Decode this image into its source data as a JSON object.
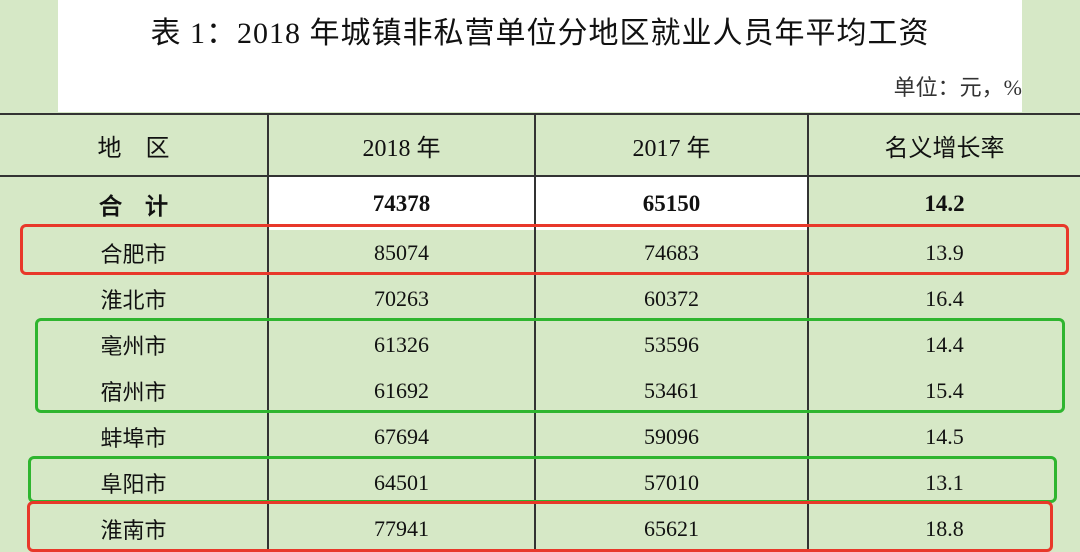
{
  "header": {
    "title": "表 1：2018 年城镇非私营单位分地区就业人员年平均工资",
    "unit": "单位：元，%"
  },
  "table": {
    "columns": [
      "地　区",
      "2018 年",
      "2017 年",
      "名义增长率"
    ],
    "rows": [
      [
        "合　计",
        74378,
        65150,
        14.2
      ],
      [
        "合肥市",
        85074,
        74683,
        13.9
      ],
      [
        "淮北市",
        70263,
        60372,
        16.4
      ],
      [
        "亳州市",
        61326,
        53596,
        14.4
      ],
      [
        "宿州市",
        61692,
        53461,
        15.4
      ],
      [
        "蚌埠市",
        67694,
        59096,
        14.5
      ],
      [
        "阜阳市",
        64501,
        57010,
        13.1
      ],
      [
        "淮南市",
        77941,
        65621,
        18.8
      ]
    ]
  }
}
